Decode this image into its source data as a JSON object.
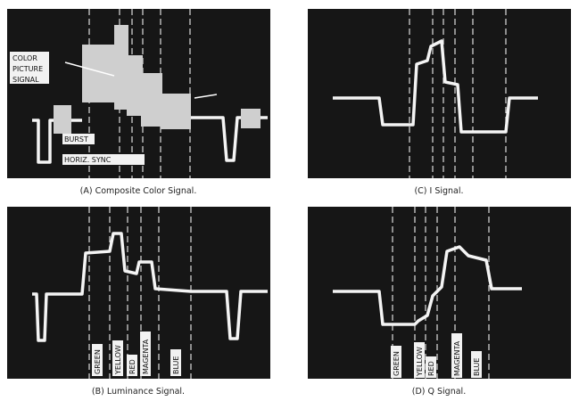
{
  "panels": [
    {
      "caption": "(A) Composite Color Signal.",
      "labels": [
        "COLOR",
        "PICTURE",
        "SIGNAL",
        "BURST",
        "HORIZ. SYNC"
      ]
    },
    {
      "caption": "(C) I Signal."
    },
    {
      "caption": "(B) Luminance Signal.",
      "labels": [
        "GREEN",
        "YELLOW",
        "RED",
        "MAGENTA",
        "BLUE"
      ]
    },
    {
      "caption": "(D) Q Signal.",
      "labels": [
        "GREEN",
        "YELLOW",
        "RED",
        "MAGENTA",
        "BLUE"
      ]
    }
  ]
}
